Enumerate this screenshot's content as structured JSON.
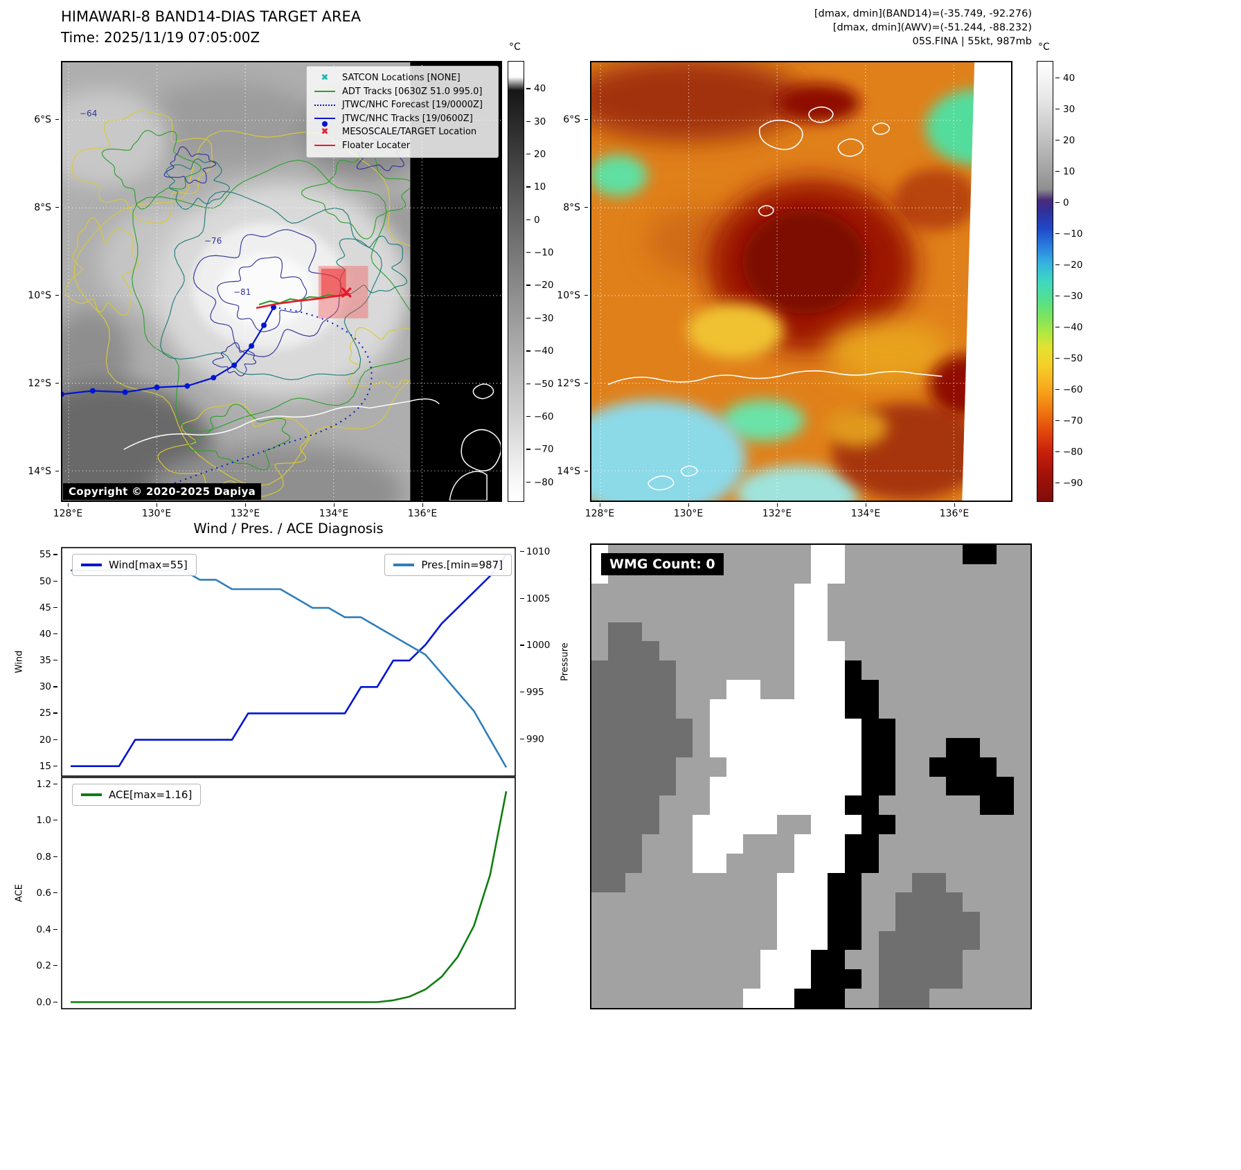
{
  "header": {
    "title": "HIMAWARI-8 BAND14-DIAS TARGET AREA",
    "time": "Time: 2025/11/19 07:05:00Z",
    "dmax_band14": "[dmax, dmin](BAND14)=(-35.749, -92.276)",
    "dmax_awv": "[dmax, dmin](AWV)=(-51.244, -88.232)",
    "storm_id": "05S.FINA | 55kt, 987mb"
  },
  "band14_panel": {
    "legend": [
      {
        "label": "SATCON Locations [NONE]",
        "marker": "x",
        "color": "#17b8b0"
      },
      {
        "label": "ADT Tracks [0630Z 51.0 995.0]",
        "marker": "line",
        "color": "#2ca02c"
      },
      {
        "label": "JTWC/NHC Forecast [19/0000Z]",
        "marker": "dotted",
        "color": "#0014d2"
      },
      {
        "label": "JTWC/NHC Tracks [19/0600Z]",
        "marker": "line-dot",
        "color": "#0014d2"
      },
      {
        "label": "MESOSCALE/TARGET Location",
        "marker": "x",
        "color": "#e8192c"
      },
      {
        "label": "Floater Locater",
        "marker": "line",
        "color": "#e8192c"
      }
    ],
    "contour_labels": [
      "−64",
      "−76",
      "−81"
    ],
    "copyright": "Copyright © 2020-2025 Dapiya",
    "colorbar": {
      "unit": "°C",
      "ticks": [
        "40",
        "30",
        "20",
        "10",
        "0",
        "−10",
        "−20",
        "−30",
        "−40",
        "−50",
        "−60",
        "−70",
        "−80"
      ]
    },
    "lat_ticks": [
      "6°S",
      "8°S",
      "10°S",
      "12°S",
      "14°S"
    ],
    "lon_ticks": [
      "128°E",
      "130°E",
      "132°E",
      "134°E",
      "136°E"
    ]
  },
  "awv_panel": {
    "colorbar": {
      "unit": "°C",
      "ticks": [
        "40",
        "30",
        "20",
        "10",
        "0",
        "−10",
        "−20",
        "−30",
        "−40",
        "−50",
        "−60",
        "−70",
        "−80",
        "−90"
      ]
    },
    "lat_ticks": [
      "6°S",
      "8°S",
      "10°S",
      "12°S",
      "14°S"
    ],
    "lon_ticks": [
      "128°E",
      "130°E",
      "132°E",
      "134°E",
      "136°E"
    ]
  },
  "wmg_panel": {
    "count_label": "WMG Count: 0",
    "palette": {
      "g": "#a2a2a2",
      "d": "#6f6f6f",
      "w": "#ffffff",
      "k": "#000000"
    },
    "grid": [
      "wggggggggggggwwgggggggkkgg",
      "wggggggggggggwwggggggggggg",
      "ggggggggggggwwgggggggggggg",
      "ggggggggggggwwgggggggggggg",
      "gddgggggggggwwgggggggggggg",
      "gdddggggggggwwwggggggggggg",
      "dddddgggggggwwwkgggggggggg",
      "dddddgggwwggwwwkkggggggggg",
      "dddddggwwwwwwwwkkggggggggg",
      "ddddddgwwwwwwwwwkkgggggggg",
      "ddddddgwwwwwwwwwkkgggkkggg",
      "dddddgggwwwwwwwwkkggkkkkgg",
      "dddddggwwwwwwwwwkkgggkkkkg",
      "ddddgggwwwwwwwwkkggggggkkg",
      "ddddggwwwwwggwwwkkgggggggg",
      "dddgggwwwgggwwwkkggggggggg",
      "dddgggwwggggwwwkkggggggggg",
      "ddgggggggggwwwkkgggddggggg",
      "gggggggggggwwwkkggddddgggg",
      "gggggggggggwwwkkggdddddggg",
      "gggggggggggwwwkkgddddddggg",
      "ggggggggggwwwkkggdddddgggg",
      "ggggggggggwwwkkkgdddddgggg",
      "gggggggggwwwkkkggdddgggggg"
    ]
  },
  "chart_data": [
    {
      "type": "line",
      "title": "Wind / Pres. / ACE Diagnosis",
      "x": [
        0,
        1,
        2,
        3,
        4,
        5,
        6,
        7,
        8,
        9,
        10,
        11,
        12,
        13,
        14,
        15,
        16,
        17,
        18,
        19,
        20,
        21,
        22,
        23,
        24,
        25,
        26,
        27
      ],
      "series": [
        {
          "name": "Wind[max=55]",
          "axis": "left",
          "color": "#0014d2",
          "values": [
            15,
            15,
            15,
            15,
            20,
            20,
            20,
            20,
            20,
            20,
            20,
            25,
            25,
            25,
            25,
            25,
            25,
            25,
            30,
            30,
            35,
            35,
            38,
            42,
            45,
            48,
            51,
            55
          ]
        },
        {
          "name": "Pres.[min=987]",
          "axis": "right",
          "color": "#2e7ebc",
          "values": [
            1008,
            1008,
            1008,
            1008,
            1008,
            1008,
            1008,
            1008,
            1007,
            1007,
            1006,
            1006,
            1006,
            1006,
            1005,
            1004,
            1004,
            1003,
            1003,
            1002,
            1001,
            1000,
            999,
            997,
            995,
            993,
            990,
            987
          ]
        }
      ],
      "ylabel_left": "Wind",
      "yticks_left": [
        15,
        20,
        25,
        30,
        35,
        40,
        45,
        50,
        55
      ],
      "ylim_left": [
        13,
        56.5
      ],
      "ylabel_right": "Pressure",
      "yticks_right": [
        990,
        995,
        1000,
        1005,
        1010
      ],
      "ylim_right": [
        986,
        1010.5
      ],
      "grid": false,
      "x_tick_labels_visible": false,
      "legend_position": "upper left / upper right"
    },
    {
      "type": "line",
      "title": "",
      "x": [
        0,
        1,
        2,
        3,
        4,
        5,
        6,
        7,
        8,
        9,
        10,
        11,
        12,
        13,
        14,
        15,
        16,
        17,
        18,
        19,
        20,
        21,
        22,
        23,
        24,
        25,
        26,
        27
      ],
      "series": [
        {
          "name": "ACE[max=1.16]",
          "axis": "left",
          "color": "#0f7d0f",
          "values": [
            0,
            0,
            0,
            0,
            0,
            0,
            0,
            0,
            0,
            0,
            0,
            0,
            0,
            0,
            0,
            0,
            0,
            0,
            0,
            0,
            0.01,
            0.03,
            0.07,
            0.14,
            0.25,
            0.42,
            0.7,
            1.16
          ]
        }
      ],
      "ylabel_left": "ACE",
      "yticks_left": [
        0,
        0.2,
        0.4,
        0.6,
        0.8,
        1,
        1.2
      ],
      "ylim_left": [
        -0.04,
        1.24
      ],
      "grid": false,
      "x_tick_labels_visible": false,
      "legend_position": "upper left"
    }
  ]
}
